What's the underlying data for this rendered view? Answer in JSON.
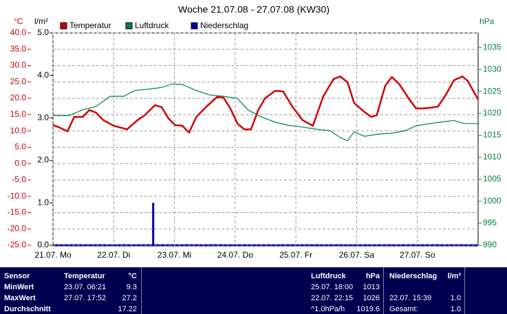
{
  "chart_data": {
    "type": "line",
    "title": "Woche 21.07.08 - 27.07.08 (KW30)",
    "y_label": "°C",
    "y3_label": "l/m²",
    "y2_label": "hPa",
    "xlim": [
      0,
      7
    ],
    "xticks": [
      {
        "value": 0,
        "label": "21.07. Mo"
      },
      {
        "value": 1,
        "label": "22.07. Di"
      },
      {
        "value": 2,
        "label": "23.07. Mi"
      },
      {
        "value": 3,
        "label": "24.07. Do"
      },
      {
        "value": 4,
        "label": "25.07. Fr"
      },
      {
        "value": 5,
        "label": "26.07. Sa"
      },
      {
        "value": 6,
        "label": "27.07. So"
      }
    ],
    "ylim": [
      -25,
      40
    ],
    "yticks": [
      {
        "value": 40,
        "label": "40.0"
      },
      {
        "value": 35,
        "label": "35.0"
      },
      {
        "value": 30,
        "label": "30.0"
      },
      {
        "value": 25,
        "label": "25.0"
      },
      {
        "value": 20,
        "label": "20.0"
      },
      {
        "value": 15,
        "label": "15.0"
      },
      {
        "value": 10,
        "label": "10.0"
      },
      {
        "value": 5,
        "label": "5.0"
      },
      {
        "value": 0,
        "label": "0.0"
      },
      {
        "value": -5,
        "label": "-5.0"
      },
      {
        "value": -10,
        "label": "-10.0"
      },
      {
        "value": -15,
        "label": "-15.0"
      },
      {
        "value": -20,
        "label": "-20.0"
      },
      {
        "value": -25,
        "label": "-25.0"
      }
    ],
    "y3lim": [
      0,
      5
    ],
    "y3ticks": [
      {
        "value": 5,
        "label": "5.0"
      },
      {
        "value": 4,
        "label": "4.0"
      },
      {
        "value": 3,
        "label": "3.0"
      },
      {
        "value": 2,
        "label": "2.0"
      },
      {
        "value": 1,
        "label": "1.0"
      },
      {
        "value": 0,
        "label": "0.0"
      }
    ],
    "y2lim": [
      990,
      1038.3
    ],
    "y2ticks": [
      1035,
      1030,
      1025,
      1020,
      1015,
      1010,
      1005,
      1000,
      995,
      990
    ],
    "grid": true,
    "series": [
      {
        "name": "Temperatur",
        "color": "#cc0000",
        "axis": "y",
        "kind": "line",
        "x": [
          0,
          0.09,
          0.24,
          0.35,
          0.49,
          0.6,
          0.71,
          0.83,
          1,
          1.22,
          1.39,
          1.51,
          1.68,
          1.79,
          1.9,
          2.01,
          2.13,
          2.24,
          2.36,
          2.53,
          2.7,
          2.81,
          2.92,
          3.04,
          3.15,
          3.26,
          3.38,
          3.49,
          3.66,
          3.79,
          3.94,
          4.11,
          4.28,
          4.45,
          4.62,
          4.73,
          4.85,
          4.96,
          5.13,
          5.24,
          5.33,
          5.47,
          5.58,
          5.7,
          5.87,
          5.98,
          6.09,
          6.21,
          6.34,
          6.47,
          6.6,
          6.74,
          6.83,
          7
        ],
        "values": [
          11.8,
          11.2,
          9.9,
          14.3,
          14.3,
          16.4,
          15.6,
          13.3,
          11.6,
          10.5,
          13.3,
          14.8,
          17.9,
          17.3,
          13.9,
          11.8,
          11.6,
          9.5,
          14.3,
          17.5,
          20.4,
          20.2,
          16.9,
          12.2,
          10.5,
          10.5,
          16.4,
          20,
          22.3,
          22.1,
          17.5,
          13.3,
          11.6,
          20.6,
          25.9,
          26.7,
          24.9,
          18.5,
          15.8,
          14.3,
          14.8,
          23.8,
          26.5,
          24.4,
          19.6,
          16.9,
          16.9,
          17.1,
          17.5,
          21.1,
          25.5,
          26.7,
          25.3,
          19.6
        ]
      },
      {
        "name": "Luftdruck",
        "color": "#008040",
        "axis": "y2",
        "kind": "line",
        "x": [
          0,
          0.26,
          0.49,
          0.71,
          0.94,
          1.17,
          1.34,
          1.56,
          1.79,
          1.96,
          2.13,
          2.36,
          2.58,
          2.81,
          3.04,
          3.21,
          3.43,
          3.66,
          3.88,
          4.11,
          4.34,
          4.56,
          4.73,
          4.85,
          4.96,
          5.13,
          5.36,
          5.58,
          5.81,
          5.98,
          6.21,
          6.43,
          6.6,
          6.77,
          7
        ],
        "values": [
          1019.5,
          1019.5,
          1020.8,
          1021.6,
          1023.9,
          1023.9,
          1025.2,
          1025.5,
          1025.9,
          1026.7,
          1026.6,
          1025.2,
          1024.2,
          1023.9,
          1023.4,
          1020.8,
          1019.2,
          1018,
          1017.3,
          1016.9,
          1016.4,
          1016.1,
          1014.5,
          1013.8,
          1015.8,
          1014.8,
          1015.3,
          1015.5,
          1016.1,
          1017.2,
          1017.7,
          1018.1,
          1018.4,
          1017.7,
          1017.7
        ]
      },
      {
        "name": "Niederschlag",
        "color": "#0000a0",
        "axis": "y3",
        "kind": "bar",
        "x": [
          1.65
        ],
        "values": [
          1.0
        ]
      }
    ]
  },
  "table": {
    "header": [
      "Sensor",
      "Temperatur",
      "°C",
      "Luftdruck",
      "hPa",
      "Niederschlag",
      "l/m²"
    ],
    "rows": [
      {
        "label": "MinWert",
        "temp_time": "23.07. 06:21",
        "temp": "9.3",
        "press_time": "25.07. 18:00",
        "press": "1013"
      },
      {
        "label": "MaxWert",
        "temp_time": "27.07. 17:52",
        "temp": "27.2",
        "press_time": "22.07. 22:15",
        "press": "1026",
        "rain_time": "22.07. 15:39",
        "rain": "1.0"
      },
      {
        "label": "Durchschnitt",
        "temp": "17.22",
        "press_time": "^1.0hPa/h",
        "press": "1019.6",
        "rain_time": "Gesamt:",
        "rain": "1.0"
      }
    ]
  }
}
